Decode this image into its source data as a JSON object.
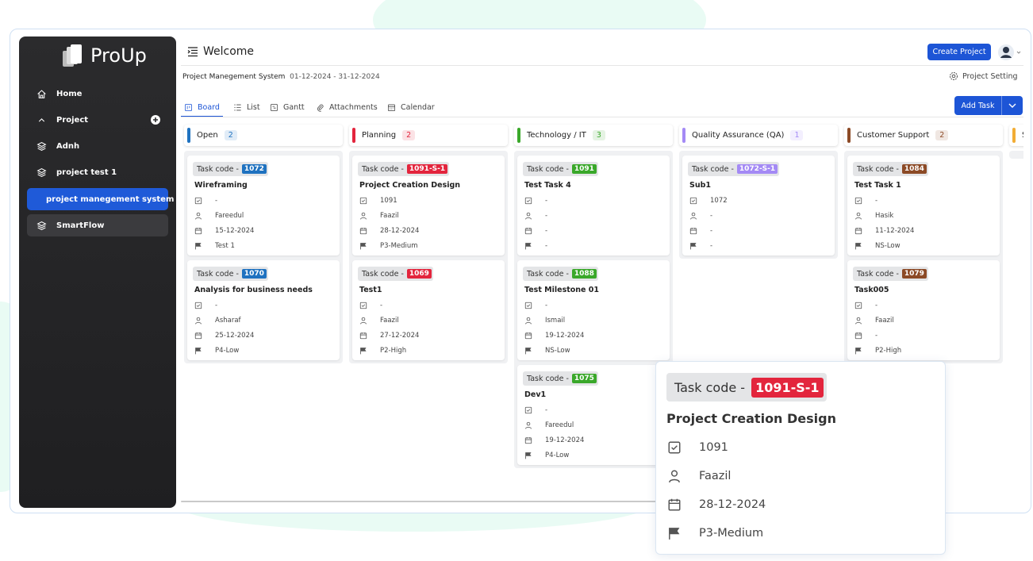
{
  "sidebar": {
    "logo": "ProUp",
    "items": [
      {
        "label": "Home",
        "icon": "home"
      },
      {
        "label": "Project",
        "icon": "chevron"
      },
      {
        "label": "Adnh",
        "icon": "layers"
      },
      {
        "label": "project test 1",
        "icon": "layers"
      },
      {
        "label": "project manegement system",
        "icon": "layers",
        "active": true
      },
      {
        "label": "SmartFlow",
        "icon": "layers",
        "highlight": true
      }
    ]
  },
  "header": {
    "title": "Welcome",
    "create_button": "Create Project"
  },
  "project": {
    "name": "Project Manegement System",
    "dates": "01-12-2024 - 31-12-2024",
    "setting": "Project Setting"
  },
  "tabs": [
    "Board",
    "List",
    "Gantt",
    "Attachments",
    "Calendar"
  ],
  "add_task": "Add Task",
  "task_code_label": "Task code -",
  "columns": [
    {
      "name": "Open",
      "count": "2",
      "color": "#1f72c0",
      "cards": [
        {
          "code": "1072",
          "title": "Wireframing",
          "parent": "-",
          "assignee": "Fareedul",
          "date": "15-12-2024",
          "priority": "Test 1"
        },
        {
          "code": "1070",
          "title": "Analysis for business needs",
          "parent": "-",
          "assignee": "Asharaf",
          "date": "25-12-2024",
          "priority": "P4-Low"
        }
      ]
    },
    {
      "name": "Planning",
      "count": "2",
      "color": "#e3253d",
      "cards": [
        {
          "code": "1091-S-1",
          "title": "Project Creation Design",
          "parent": "1091",
          "assignee": "Faazil",
          "date": "28-12-2024",
          "priority": "P3-Medium"
        },
        {
          "code": "1069",
          "title": "Test1",
          "parent": "-",
          "assignee": "Faazil",
          "date": "27-12-2024",
          "priority": "P2-High"
        }
      ]
    },
    {
      "name": "Technology / IT",
      "count": "3",
      "color": "#3aa82a",
      "cards": [
        {
          "code": "1091",
          "title": "Test Task 4",
          "parent": "-",
          "assignee": "-",
          "date": "-",
          "priority": "-"
        },
        {
          "code": "1088",
          "title": "Test Milestone 01",
          "parent": "-",
          "assignee": "Ismail",
          "date": "19-12-2024",
          "priority": "NS-Low"
        },
        {
          "code": "1075",
          "title": "Dev1",
          "parent": "-",
          "assignee": "Fareedul",
          "date": "19-12-2024",
          "priority": "P4-Low"
        }
      ]
    },
    {
      "name": "Quality Assurance (QA)",
      "count": "1",
      "color": "#a48af5",
      "cards": [
        {
          "code": "1072-S-1",
          "title": "Sub1",
          "parent": "1072",
          "assignee": "-",
          "date": "-",
          "priority": "-"
        }
      ]
    },
    {
      "name": "Customer Support",
      "count": "2",
      "color": "#8c4a26",
      "cards": [
        {
          "code": "1084",
          "title": "Test Task 1",
          "parent": "-",
          "assignee": "Hasik",
          "date": "11-12-2024",
          "priority": "NS-Low"
        },
        {
          "code": "1079",
          "title": "Task005",
          "parent": "-",
          "assignee": "Faazil",
          "date": "-",
          "priority": "P2-High"
        }
      ]
    },
    {
      "name": "Sa",
      "color": "#f2ad35",
      "cards": []
    }
  ],
  "zoom_card": {
    "code": "1091-S-1",
    "color": "#e3253d",
    "title": "Project Creation Design",
    "parent": "1091",
    "assignee": "Faazil",
    "date": "28-12-2024",
    "priority": "P3-Medium"
  }
}
